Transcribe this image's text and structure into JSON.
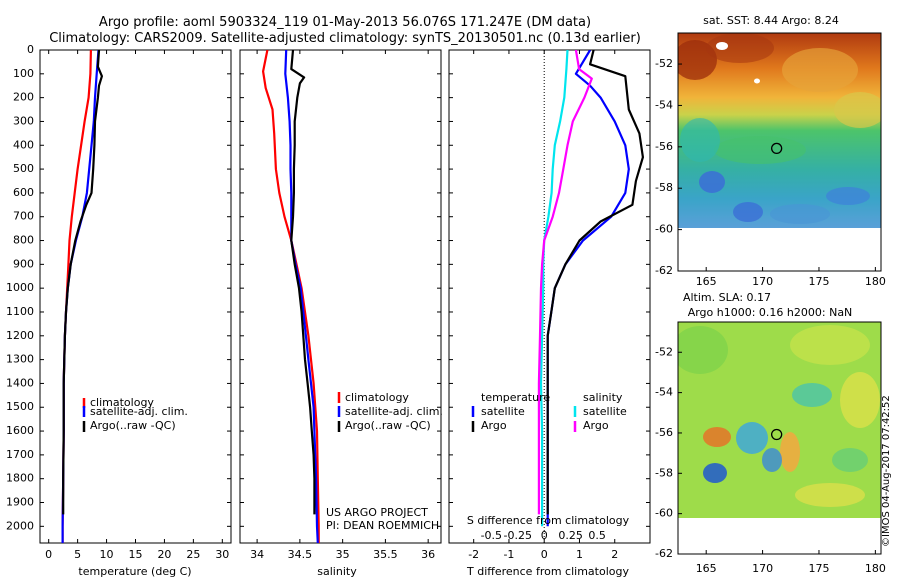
{
  "title_line1": "Argo profile: aoml 5903324_119 01-May-2013 56.076S 171.247E (DM data)",
  "title_line2": "Climatology: CARS2009. Satellite-adjusted climatology: synTS_20130501.nc (0.13d earlier)",
  "footer_stamp": "©IMOS 04-Aug-2017 07:42:52",
  "colors": {
    "climatology": "#ff0000",
    "satellite": "#0000ff",
    "argo": "#000000",
    "sat_salinity": "#00e5ee",
    "argo_salinity": "#ff00ff"
  },
  "chart_data": [
    {
      "type": "line",
      "name": "temperature profile",
      "xlabel": "temperature (deg C)",
      "xlim": [
        -1.5,
        31.5
      ],
      "xticks": [
        "0",
        "5",
        "10",
        "15",
        "20",
        "25",
        "30"
      ],
      "xtick_values": [
        0,
        5,
        10,
        15,
        20,
        25,
        30
      ],
      "ylim": [
        0,
        2070
      ],
      "yticks": [
        0,
        100,
        200,
        300,
        400,
        500,
        600,
        700,
        800,
        900,
        1000,
        1100,
        1200,
        1300,
        1400,
        1500,
        1600,
        1700,
        1800,
        1900,
        2000
      ],
      "legend": [
        "climatology",
        "satellite-adj. clim.",
        "Argo(..raw -QC)"
      ],
      "series": [
        {
          "key": "climatology",
          "color": "#ff0000",
          "points": [
            [
              7.3,
              0
            ],
            [
              7.2,
              100
            ],
            [
              6.9,
              200
            ],
            [
              6.2,
              300
            ],
            [
              5.6,
              400
            ],
            [
              5.0,
              500
            ],
            [
              4.5,
              600
            ],
            [
              4.0,
              700
            ],
            [
              3.6,
              800
            ],
            [
              3.4,
              900
            ],
            [
              3.2,
              1000
            ],
            [
              3.0,
              1100
            ],
            [
              2.8,
              1200
            ],
            [
              2.7,
              1300
            ],
            [
              2.6,
              1400
            ],
            [
              2.6,
              1600
            ],
            [
              2.5,
              1800
            ],
            [
              2.4,
              2000
            ],
            [
              2.4,
              2070
            ]
          ]
        },
        {
          "key": "satellite",
          "color": "#0000ff",
          "points": [
            [
              8.6,
              0
            ],
            [
              8.3,
              100
            ],
            [
              8.0,
              200
            ],
            [
              7.8,
              300
            ],
            [
              7.4,
              400
            ],
            [
              7.0,
              500
            ],
            [
              6.6,
              600
            ],
            [
              5.8,
              700
            ],
            [
              4.7,
              800
            ],
            [
              3.8,
              900
            ],
            [
              3.3,
              1000
            ],
            [
              3.0,
              1100
            ],
            [
              2.8,
              1200
            ],
            [
              2.7,
              1300
            ],
            [
              2.6,
              1400
            ],
            [
              2.6,
              1600
            ],
            [
              2.5,
              1800
            ],
            [
              2.4,
              2000
            ],
            [
              2.4,
              2070
            ]
          ]
        },
        {
          "key": "argo",
          "color": "#000000",
          "points": [
            [
              8.7,
              0
            ],
            [
              8.5,
              70
            ],
            [
              9.2,
              110
            ],
            [
              8.7,
              150
            ],
            [
              8.5,
              200
            ],
            [
              8.0,
              300
            ],
            [
              7.9,
              400
            ],
            [
              7.7,
              500
            ],
            [
              7.4,
              600
            ],
            [
              6.5,
              650
            ],
            [
              5.5,
              720
            ],
            [
              4.6,
              800
            ],
            [
              3.8,
              900
            ],
            [
              3.3,
              1000
            ],
            [
              3.0,
              1100
            ],
            [
              2.8,
              1200
            ],
            [
              2.7,
              1300
            ],
            [
              2.6,
              1400
            ],
            [
              2.6,
              1600
            ],
            [
              2.5,
              1800
            ],
            [
              2.5,
              1950
            ]
          ]
        }
      ]
    },
    {
      "type": "line",
      "name": "salinity profile",
      "xlabel": "salinity",
      "xlim": [
        33.8,
        36.15
      ],
      "xticks": [
        "34",
        "34.5",
        "35",
        "35.5",
        "36"
      ],
      "xtick_values": [
        34,
        34.5,
        35,
        35.5,
        36
      ],
      "ylim": [
        0,
        2070
      ],
      "legend": [
        "climatology",
        "satellite-adj. clim.",
        "Argo(..raw -QC)"
      ],
      "annotation": [
        "US ARGO PROJECT",
        "PI: DEAN ROEMMICH"
      ],
      "series": [
        {
          "key": "climatology",
          "color": "#ff0000",
          "points": [
            [
              34.12,
              0
            ],
            [
              34.07,
              90
            ],
            [
              34.1,
              160
            ],
            [
              34.18,
              250
            ],
            [
              34.2,
              350
            ],
            [
              34.22,
              500
            ],
            [
              34.26,
              600
            ],
            [
              34.32,
              700
            ],
            [
              34.4,
              800
            ],
            [
              34.46,
              900
            ],
            [
              34.52,
              1000
            ],
            [
              34.56,
              1100
            ],
            [
              34.6,
              1200
            ],
            [
              34.63,
              1300
            ],
            [
              34.66,
              1400
            ],
            [
              34.68,
              1500
            ],
            [
              34.7,
              1600
            ],
            [
              34.71,
              1800
            ],
            [
              34.72,
              2000
            ],
            [
              34.72,
              2070
            ]
          ]
        },
        {
          "key": "satellite",
          "color": "#0000ff",
          "points": [
            [
              34.34,
              0
            ],
            [
              34.33,
              100
            ],
            [
              34.36,
              200
            ],
            [
              34.38,
              300
            ],
            [
              34.39,
              400
            ],
            [
              34.39,
              500
            ],
            [
              34.4,
              600
            ],
            [
              34.4,
              700
            ],
            [
              34.4,
              800
            ],
            [
              34.45,
              900
            ],
            [
              34.51,
              1000
            ],
            [
              34.54,
              1100
            ],
            [
              34.57,
              1200
            ],
            [
              34.6,
              1300
            ],
            [
              34.63,
              1400
            ],
            [
              34.66,
              1500
            ],
            [
              34.67,
              1600
            ],
            [
              34.69,
              1800
            ],
            [
              34.7,
              2000
            ],
            [
              34.71,
              2070
            ]
          ]
        },
        {
          "key": "argo",
          "color": "#000000",
          "points": [
            [
              34.42,
              0
            ],
            [
              34.4,
              80
            ],
            [
              34.55,
              115
            ],
            [
              34.5,
              140
            ],
            [
              34.47,
              200
            ],
            [
              34.44,
              300
            ],
            [
              34.44,
              400
            ],
            [
              34.43,
              500
            ],
            [
              34.43,
              600
            ],
            [
              34.42,
              700
            ],
            [
              34.4,
              800
            ],
            [
              34.44,
              900
            ],
            [
              34.49,
              1000
            ],
            [
              34.52,
              1100
            ],
            [
              34.54,
              1200
            ],
            [
              34.56,
              1300
            ],
            [
              34.59,
              1400
            ],
            [
              34.62,
              1500
            ],
            [
              34.64,
              1600
            ],
            [
              34.66,
              1700
            ],
            [
              34.67,
              1800
            ],
            [
              34.67,
              1950
            ]
          ]
        }
      ]
    },
    {
      "type": "line",
      "name": "difference from climatology",
      "xlabel": "T difference from climatology",
      "xlabel2": "S difference from climatology",
      "xlim_T": [
        -2.7,
        3.0
      ],
      "xticks_T": [
        "-2",
        "-1",
        "0",
        "1",
        "2"
      ],
      "xtick_values_T": [
        -2,
        -1,
        0,
        1,
        2
      ],
      "xticks_S": [
        "-0.5",
        "-0.25",
        "0",
        "0.25",
        "0.5"
      ],
      "xtick_values_S": [
        -0.5,
        -0.25,
        0,
        0.25,
        0.5
      ],
      "ylim": [
        0,
        2070
      ],
      "legend_temperature": {
        "heading": "temperature",
        "items": [
          "satellite",
          "Argo"
        ]
      },
      "legend_salinity": {
        "heading": "salinity",
        "items": [
          "satellite",
          "Argo"
        ]
      },
      "series": [
        {
          "key": "T satellite",
          "color": "#0000ff",
          "axis": "T",
          "points": [
            [
              1.3,
              0
            ],
            [
              1.1,
              50
            ],
            [
              0.9,
              100
            ],
            [
              1.3,
              150
            ],
            [
              1.6,
              200
            ],
            [
              2.0,
              300
            ],
            [
              2.3,
              400
            ],
            [
              2.4,
              500
            ],
            [
              2.3,
              600
            ],
            [
              1.9,
              700
            ],
            [
              1.1,
              800
            ],
            [
              0.6,
              900
            ],
            [
              0.3,
              1000
            ],
            [
              0.2,
              1100
            ],
            [
              0.1,
              1200
            ],
            [
              0.1,
              1400
            ],
            [
              0.1,
              1600
            ],
            [
              0.1,
              1800
            ],
            [
              0.1,
              2000
            ]
          ]
        },
        {
          "key": "T Argo",
          "color": "#000000",
          "axis": "T",
          "points": [
            [
              1.4,
              0
            ],
            [
              1.3,
              60
            ],
            [
              2.3,
              110
            ],
            [
              2.4,
              250
            ],
            [
              2.7,
              350
            ],
            [
              2.8,
              450
            ],
            [
              2.6,
              550
            ],
            [
              2.5,
              650
            ],
            [
              1.6,
              720
            ],
            [
              1.0,
              800
            ],
            [
              0.6,
              900
            ],
            [
              0.3,
              1000
            ],
            [
              0.2,
              1100
            ],
            [
              0.1,
              1200
            ],
            [
              0.1,
              1500
            ],
            [
              0.1,
              1800
            ],
            [
              0.1,
              1950
            ]
          ]
        },
        {
          "key": "S satellite",
          "color": "#00e5ee",
          "axis": "S",
          "points": [
            [
              0.22,
              0
            ],
            [
              0.21,
              80
            ],
            [
              0.19,
              200
            ],
            [
              0.15,
              300
            ],
            [
              0.1,
              400
            ],
            [
              0.08,
              500
            ],
            [
              0.07,
              600
            ],
            [
              0.04,
              700
            ],
            [
              0.0,
              800
            ],
            [
              -0.01,
              900
            ],
            [
              -0.01,
              1000
            ],
            [
              -0.02,
              1200
            ],
            [
              -0.03,
              1400
            ],
            [
              -0.02,
              1600
            ],
            [
              -0.02,
              1800
            ],
            [
              -0.02,
              2000
            ]
          ]
        },
        {
          "key": "S Argo",
          "color": "#ff00ff",
          "axis": "S",
          "points": [
            [
              0.3,
              0
            ],
            [
              0.33,
              80
            ],
            [
              0.45,
              120
            ],
            [
              0.38,
              200
            ],
            [
              0.27,
              300
            ],
            [
              0.22,
              400
            ],
            [
              0.18,
              500
            ],
            [
              0.14,
              600
            ],
            [
              0.08,
              700
            ],
            [
              0.0,
              800
            ],
            [
              -0.02,
              900
            ],
            [
              -0.03,
              1000
            ],
            [
              -0.04,
              1200
            ],
            [
              -0.05,
              1400
            ],
            [
              -0.05,
              1600
            ],
            [
              -0.05,
              1800
            ],
            [
              -0.05,
              1950
            ]
          ]
        }
      ]
    },
    {
      "type": "heatmap",
      "name": "satellite SST map",
      "title": "sat. SST: 8.44  Argo: 8.24",
      "xlim": [
        162.5,
        180.5
      ],
      "ylim": [
        -62,
        -50.5
      ],
      "xticks": [
        "165",
        "170",
        "175",
        "180"
      ],
      "xtick_values": [
        165,
        170,
        175,
        180
      ],
      "yticks": [
        "-52",
        "-54",
        "-56",
        "-58",
        "-60",
        "-62"
      ],
      "ytick_values": [
        -52,
        -54,
        -56,
        -58,
        -60,
        -62
      ],
      "data_south_limit": -60,
      "marker": {
        "lon": 171.247,
        "lat": -56.076
      }
    },
    {
      "type": "heatmap",
      "name": "altimetry SLA map",
      "title": "Altim. SLA: 0.17",
      "subtitle": "Argo h1000: 0.16 h2000: NaN",
      "xlim": [
        162.5,
        180.5
      ],
      "ylim": [
        -62,
        -50.5
      ],
      "xticks": [
        "165",
        "170",
        "175",
        "180"
      ],
      "xtick_values": [
        165,
        170,
        175,
        180
      ],
      "yticks": [
        "-52",
        "-54",
        "-56",
        "-58",
        "-60",
        "-62"
      ],
      "ytick_values": [
        -52,
        -54,
        -56,
        -58,
        -60,
        -62
      ],
      "data_south_limit": -60,
      "marker": {
        "lon": 171.247,
        "lat": -56.076
      }
    }
  ]
}
